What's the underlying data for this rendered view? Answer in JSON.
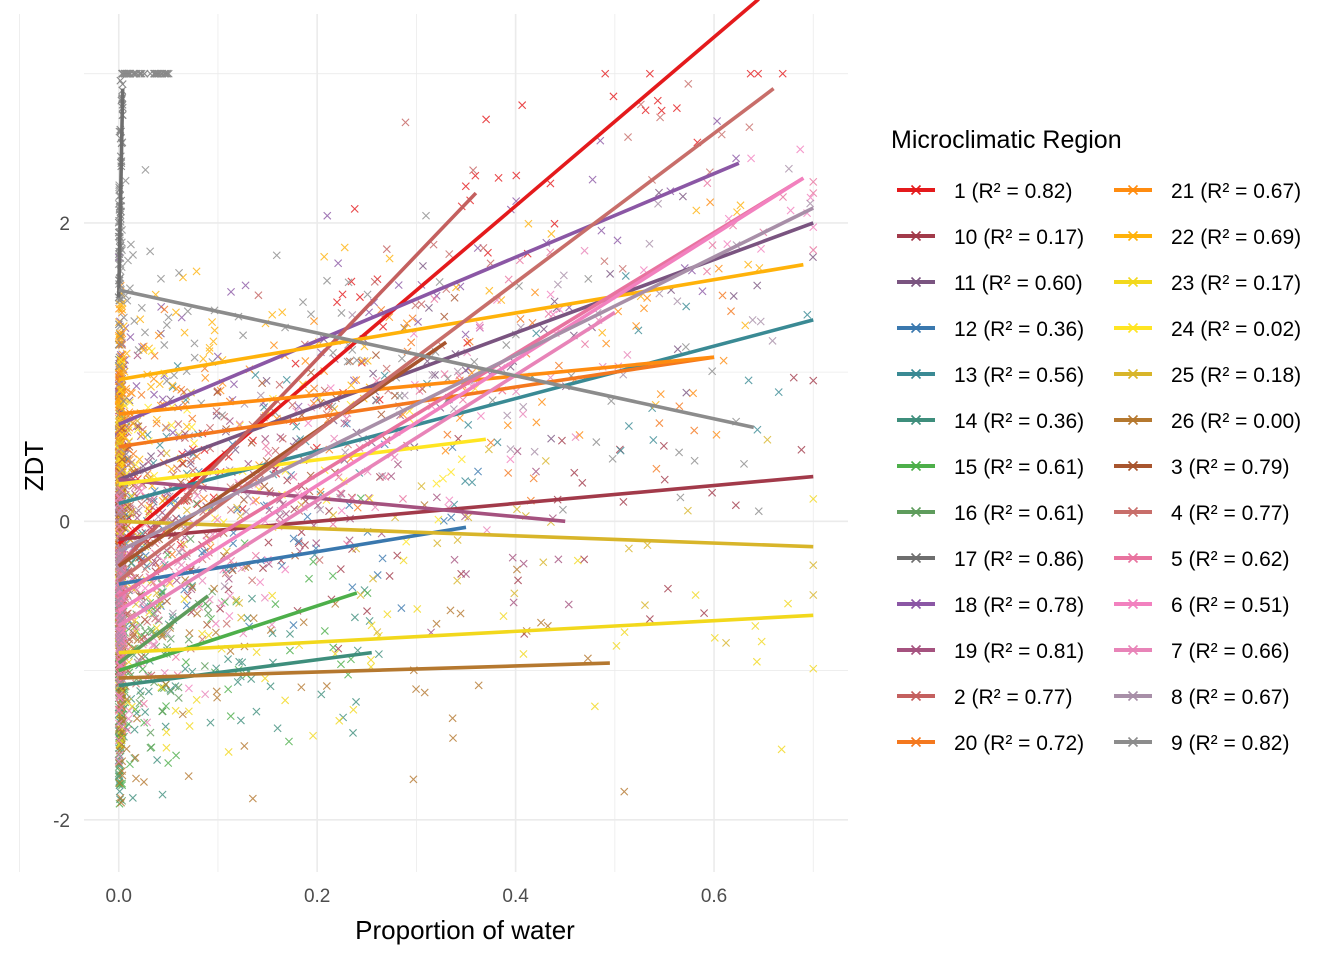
{
  "chart_data": {
    "type": "scatter",
    "title": "",
    "xlabel": "Proportion of water",
    "ylabel": "ZDT",
    "xlim": [
      -0.035,
      0.735
    ],
    "ylim": [
      -2.35,
      3.4
    ],
    "x_ticks": [
      0.0,
      0.2,
      0.4,
      0.6
    ],
    "x_tick_labels": [
      "0.0",
      "0.2",
      "0.4",
      "0.6"
    ],
    "y_ticks": [
      -2,
      0,
      2
    ],
    "y_tick_labels": [
      "-2",
      "0",
      "2"
    ],
    "grid": true,
    "point_marker": "x",
    "legend": {
      "title": "Microclimatic Region",
      "placement": "right",
      "columns": 2
    },
    "series": [
      {
        "name": "1 (R² = 0.82)",
        "color": "#E41A1C",
        "fit": {
          "x": [
            0.0,
            0.645
          ],
          "y": [
            -0.15,
            3.5
          ]
        }
      },
      {
        "name": "10 (R² = 0.17)",
        "color": "#A23A4A",
        "fit": {
          "x": [
            0.0,
            0.7
          ],
          "y": [
            -0.12,
            0.3
          ]
        }
      },
      {
        "name": "11 (R² = 0.60)",
        "color": "#7A5480",
        "fit": {
          "x": [
            0.0,
            0.7
          ],
          "y": [
            0.28,
            2.0
          ]
        }
      },
      {
        "name": "12 (R² = 0.36)",
        "color": "#3A78AE",
        "fit": {
          "x": [
            0.0,
            0.35
          ],
          "y": [
            -0.42,
            -0.04
          ]
        }
      },
      {
        "name": "13 (R² = 0.56)",
        "color": "#3A8A94",
        "fit": {
          "x": [
            0.0,
            0.7
          ],
          "y": [
            0.12,
            1.35
          ]
        }
      },
      {
        "name": "14 (R² = 0.36)",
        "color": "#3E8E7C",
        "fit": {
          "x": [
            0.0,
            0.255
          ],
          "y": [
            -1.1,
            -0.88
          ]
        }
      },
      {
        "name": "15 (R² = 0.61)",
        "color": "#4DAF4A",
        "fit": {
          "x": [
            0.0,
            0.24
          ],
          "y": [
            -1.0,
            -0.48
          ]
        }
      },
      {
        "name": "16 (R² = 0.61)",
        "color": "#5E9C5C",
        "fit": {
          "x": [
            0.0,
            0.09
          ],
          "y": [
            -0.95,
            -0.5
          ]
        }
      },
      {
        "name": "17 (R² = 0.86)",
        "color": "#6E6E6E",
        "fit": {
          "x": [
            0.0,
            0.004
          ],
          "y": [
            1.5,
            2.9
          ]
        }
      },
      {
        "name": "18 (R² = 0.78)",
        "color": "#8B57A5",
        "fit": {
          "x": [
            0.0,
            0.625
          ],
          "y": [
            0.65,
            2.4
          ]
        }
      },
      {
        "name": "19 (R² = 0.81)",
        "color": "#A5527F",
        "fit": {
          "x": [
            0.0,
            0.45
          ],
          "y": [
            0.28,
            0.0
          ]
        }
      },
      {
        "name": "2 (R² = 0.77)",
        "color": "#C4605F",
        "fit": {
          "x": [
            0.0,
            0.36
          ],
          "y": [
            -0.3,
            2.2
          ]
        }
      },
      {
        "name": "20 (R² = 0.72)",
        "color": "#F4781E",
        "fit": {
          "x": [
            0.0,
            0.6
          ],
          "y": [
            0.5,
            1.1
          ]
        }
      },
      {
        "name": "21 (R² = 0.67)",
        "color": "#FF8C10",
        "fit": {
          "x": [
            0.0,
            0.6
          ],
          "y": [
            0.72,
            1.1
          ]
        }
      },
      {
        "name": "22 (R² = 0.69)",
        "color": "#FFB20A",
        "fit": {
          "x": [
            0.0,
            0.69
          ],
          "y": [
            0.95,
            1.72
          ]
        }
      },
      {
        "name": "23 (R² = 0.17)",
        "color": "#F2D81C",
        "fit": {
          "x": [
            0.0,
            0.7
          ],
          "y": [
            -0.88,
            -0.63
          ]
        }
      },
      {
        "name": "24 (R² = 0.02)",
        "color": "#FFE522",
        "fit": {
          "x": [
            0.0,
            0.37
          ],
          "y": [
            0.25,
            0.55
          ]
        }
      },
      {
        "name": "25 (R² = 0.18)",
        "color": "#D8B52A",
        "fit": {
          "x": [
            0.0,
            0.7
          ],
          "y": [
            0.0,
            -0.17
          ]
        }
      },
      {
        "name": "26 (R² = 0.00)",
        "color": "#B5782F",
        "fit": {
          "x": [
            0.0,
            0.495
          ],
          "y": [
            -1.05,
            -0.95
          ]
        }
      },
      {
        "name": "3 (R² = 0.79)",
        "color": "#A8552E",
        "fit": {
          "x": [
            0.0,
            0.33
          ],
          "y": [
            -0.3,
            1.2
          ]
        }
      },
      {
        "name": "4 (R² = 0.77)",
        "color": "#C86E6A",
        "fit": {
          "x": [
            0.0,
            0.66
          ],
          "y": [
            -0.4,
            2.9
          ]
        }
      },
      {
        "name": "5 (R² = 0.62)",
        "color": "#E8739F",
        "fit": {
          "x": [
            0.0,
            0.69
          ],
          "y": [
            -0.5,
            2.3
          ]
        }
      },
      {
        "name": "6 (R² = 0.51)",
        "color": "#F281BF",
        "fit": {
          "x": [
            0.0,
            0.69
          ],
          "y": [
            -0.6,
            2.3
          ]
        }
      },
      {
        "name": "7 (R² = 0.66)",
        "color": "#E884B8",
        "fit": {
          "x": [
            0.0,
            0.5
          ],
          "y": [
            -0.7,
            1.4
          ]
        }
      },
      {
        "name": "8 (R² = 0.67)",
        "color": "#A88FA8",
        "fit": {
          "x": [
            0.0,
            0.7
          ],
          "y": [
            -0.2,
            2.1
          ]
        }
      },
      {
        "name": "9 (R² = 0.82)",
        "color": "#8C8C8C",
        "fit": {
          "x": [
            0.0,
            0.64
          ],
          "y": [
            1.55,
            0.63
          ]
        }
      }
    ]
  }
}
